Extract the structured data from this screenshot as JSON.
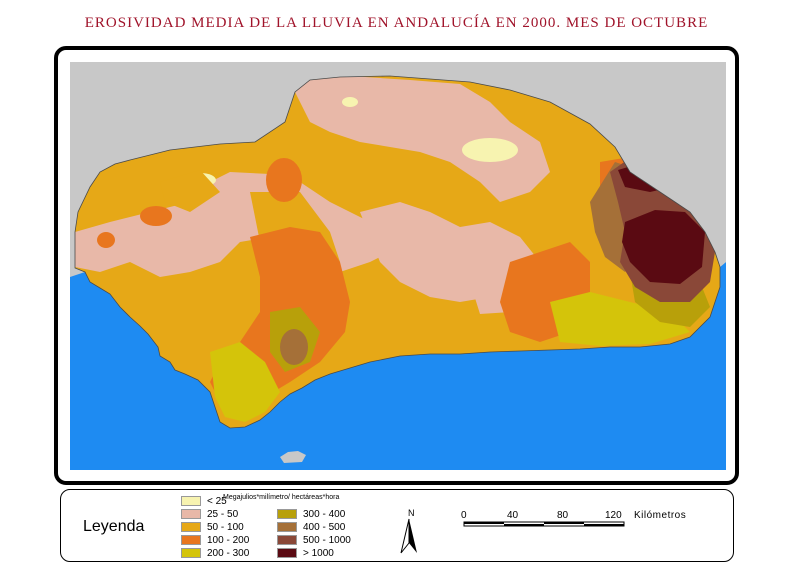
{
  "title": "EROSIVIDAD MEDIA DE LA LLUVIA EN ANDALUCÍA EN 2000. MES DE OCTUBRE",
  "colors": {
    "sea": "#1e8bf2",
    "outside_land": "#c8c8c8",
    "border": "#000000"
  },
  "legend": {
    "title": "Leyenda",
    "units": "Megajulios*milímetro/ hectáreas*hora",
    "classes": [
      {
        "label": "< 25",
        "color": "#f7f3b0"
      },
      {
        "label": "25 - 50",
        "color": "#e8b8a8"
      },
      {
        "label": "50 - 100",
        "color": "#e6a817"
      },
      {
        "label": "100 - 200",
        "color": "#e8761e"
      },
      {
        "label": "200 - 300",
        "color": "#d4c40a"
      },
      {
        "label": "300 - 400",
        "color": "#b8a00a"
      },
      {
        "label": "400 - 500",
        "color": "#a57038"
      },
      {
        "label": "500 - 1000",
        "color": "#8a4838"
      },
      {
        "label": "> 1000",
        "color": "#5a0a12"
      }
    ]
  },
  "north_arrow": {
    "label": "N"
  },
  "scale_bar": {
    "ticks": [
      "0",
      "40",
      "80",
      "120"
    ],
    "unit": "Kilómetros"
  }
}
